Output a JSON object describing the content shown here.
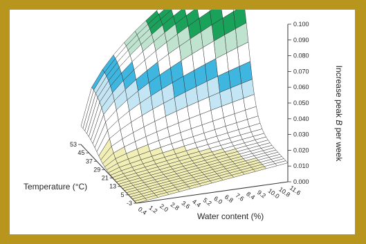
{
  "colors": {
    "frame": "#b8961e",
    "band_purple": "#8c4fc1",
    "band_lilac": "#c9a8d8",
    "band_green": "#1aa25a",
    "band_mint": "#bfe3cf",
    "band_cyan": "#3fb6e0",
    "band_lightblue": "#c4e6f4",
    "band_yellow": "#f2efb6",
    "mesh": "#333333"
  },
  "chart_data": {
    "type": "surface",
    "title": "",
    "xlabel": "Water content (%)",
    "ylabel": "Temperature (°C)",
    "zlabel": "Increase peak B per week",
    "zlabel_parts": {
      "pre": "Increase peak ",
      "italic": "B",
      "post": " per week"
    },
    "x_ticks": [
      "0.4",
      "1.2",
      "2.0",
      "2.8",
      "3.6",
      "4.4",
      "5.2",
      "6.0",
      "6.8",
      "7.6",
      "8.4",
      "9.2",
      "10.0",
      "10.8",
      "11.6"
    ],
    "y_ticks": [
      "-3",
      "5",
      "13",
      "21",
      "29",
      "37",
      "45",
      "53"
    ],
    "z_ticks": [
      "0.000",
      "0.010",
      "0.020",
      "0.030",
      "0.040",
      "0.050",
      "0.060",
      "0.070",
      "0.080",
      "0.090",
      "0.100"
    ],
    "x_range": [
      0.4,
      11.6
    ],
    "y_range": [
      -3,
      53
    ],
    "z_range": [
      0,
      0.1
    ],
    "color_bands": [
      {
        "from": 0.0,
        "to": 0.01,
        "color": "#f2efb6"
      },
      {
        "from": 0.01,
        "to": 0.02,
        "color": "#ffffff"
      },
      {
        "from": 0.02,
        "to": 0.03,
        "color": "#ffffff"
      },
      {
        "from": 0.03,
        "to": 0.04,
        "color": "#c4e6f4"
      },
      {
        "from": 0.04,
        "to": 0.05,
        "color": "#3fb6e0"
      },
      {
        "from": 0.05,
        "to": 0.06,
        "color": "#ffffff"
      },
      {
        "from": 0.06,
        "to": 0.07,
        "color": "#bfe3cf"
      },
      {
        "from": 0.07,
        "to": 0.08,
        "color": "#1aa25a"
      },
      {
        "from": 0.08,
        "to": 0.09,
        "color": "#ffffff"
      },
      {
        "from": 0.09,
        "to": 0.1,
        "color": "#c9a8d8"
      },
      {
        "from": 0.1,
        "to": 0.11,
        "color": "#8c4fc1"
      }
    ],
    "surface_description_points": [
      {
        "water": 0.4,
        "temp": -3,
        "increase": 0.0
      },
      {
        "water": 11.6,
        "temp": -3,
        "increase": 0.008
      },
      {
        "water": 0.4,
        "temp": 21,
        "increase": 0.006
      },
      {
        "water": 11.6,
        "temp": 21,
        "increase": 0.03
      },
      {
        "water": 0.4,
        "temp": 37,
        "increase": 0.025
      },
      {
        "water": 11.6,
        "temp": 37,
        "increase": 0.1
      },
      {
        "water": 0.4,
        "temp": 53,
        "increase": 0.1
      },
      {
        "water": 11.6,
        "temp": 53,
        "increase": 0.1
      }
    ]
  }
}
